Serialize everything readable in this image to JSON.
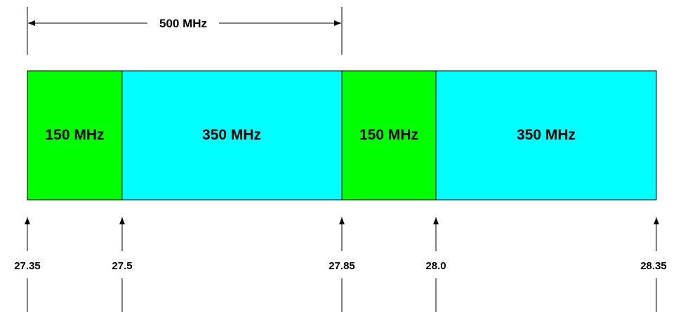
{
  "span": {
    "label": "500 MHz"
  },
  "blocks": [
    {
      "label": "150 MHz",
      "color": "#00ff00"
    },
    {
      "label": "350 MHz",
      "color": "#00ffff"
    },
    {
      "label": "150 MHz",
      "color": "#00ff00"
    },
    {
      "label": "350 MHz",
      "color": "#00ffff"
    }
  ],
  "frequencies": [
    "27.35",
    "27.5",
    "27.85",
    "28.0",
    "28.35"
  ]
}
